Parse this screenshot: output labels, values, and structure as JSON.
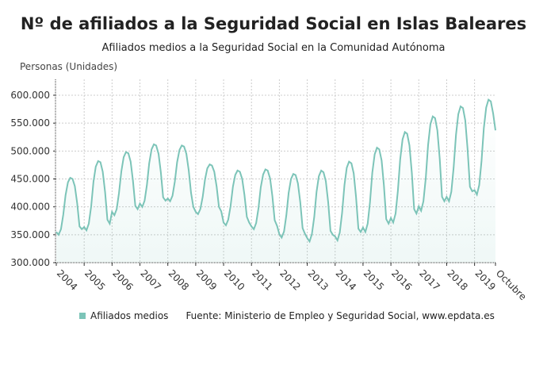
{
  "chart_data": {
    "type": "area",
    "title": "Nº de afiliados a la Seguridad Social en Islas Baleares",
    "subtitle": "Afiliados medios a la Seguridad Social en la Comunidad Autónoma",
    "ylabel": "Personas (Unidades)",
    "xlabel": "",
    "ylim": [
      300000,
      600000
    ],
    "yticks": [
      "300.000",
      "350.000",
      "400.000",
      "450.000",
      "500.000",
      "550.000",
      "600.000"
    ],
    "xticks": [
      "2004",
      "2005",
      "2006",
      "2007",
      "2008",
      "2009",
      "2010",
      "2011",
      "2012",
      "2013",
      "2014",
      "2015",
      "2016",
      "2017",
      "2018",
      "2019",
      "Octubre"
    ],
    "grid": true,
    "legend_position": "bottom",
    "line_color": "#7cc4b8",
    "x_start": "2004-01",
    "x_end": "2019-10",
    "frequency": "monthly",
    "series": [
      {
        "name": "Afiliados medios",
        "values_thousands": [
          355,
          350,
          360,
          386,
          421,
          444,
          452,
          450,
          437,
          406,
          365,
          360,
          364,
          358,
          370,
          401,
          445,
          472,
          482,
          480,
          463,
          426,
          377,
          370,
          391,
          385,
          396,
          425,
          464,
          489,
          498,
          496,
          481,
          447,
          402,
          396,
          406,
          400,
          411,
          439,
          478,
          503,
          512,
          510,
          495,
          462,
          417,
          411,
          415,
          410,
          420,
          445,
          480,
          502,
          510,
          508,
          495,
          465,
          425,
          400,
          391,
          387,
          396,
          418,
          449,
          469,
          476,
          474,
          463,
          436,
          400,
          392,
          372,
          367,
          377,
          401,
          436,
          457,
          465,
          463,
          450,
          421,
          382,
          372,
          365,
          360,
          371,
          397,
          435,
          458,
          467,
          465,
          451,
          419,
          376,
          366,
          351,
          345,
          356,
          385,
          425,
          450,
          459,
          457,
          442,
          408,
          362,
          352,
          344,
          338,
          351,
          382,
          427,
          455,
          465,
          462,
          446,
          408,
          357,
          350,
          347,
          340,
          354,
          389,
          439,
          470,
          481,
          478,
          460,
          418,
          361,
          355,
          363,
          355,
          370,
          408,
          461,
          494,
          506,
          503,
          483,
          438,
          378,
          370,
          380,
          372,
          388,
          429,
          485,
          521,
          534,
          531,
          510,
          461,
          396,
          388,
          401,
          393,
          410,
          452,
          511,
          548,
          562,
          559,
          537,
          486,
          418,
          410,
          418,
          410,
          427,
          470,
          529,
          566,
          580,
          577,
          555,
          504,
          436,
          428,
          430,
          422,
          439,
          482,
          541,
          578,
          592,
          589,
          567,
          537
        ]
      }
    ]
  },
  "legend": {
    "label": "Afiliados medios",
    "source": "Fuente: Ministerio de Empleo y Seguridad Social, www.epdata.es"
  }
}
